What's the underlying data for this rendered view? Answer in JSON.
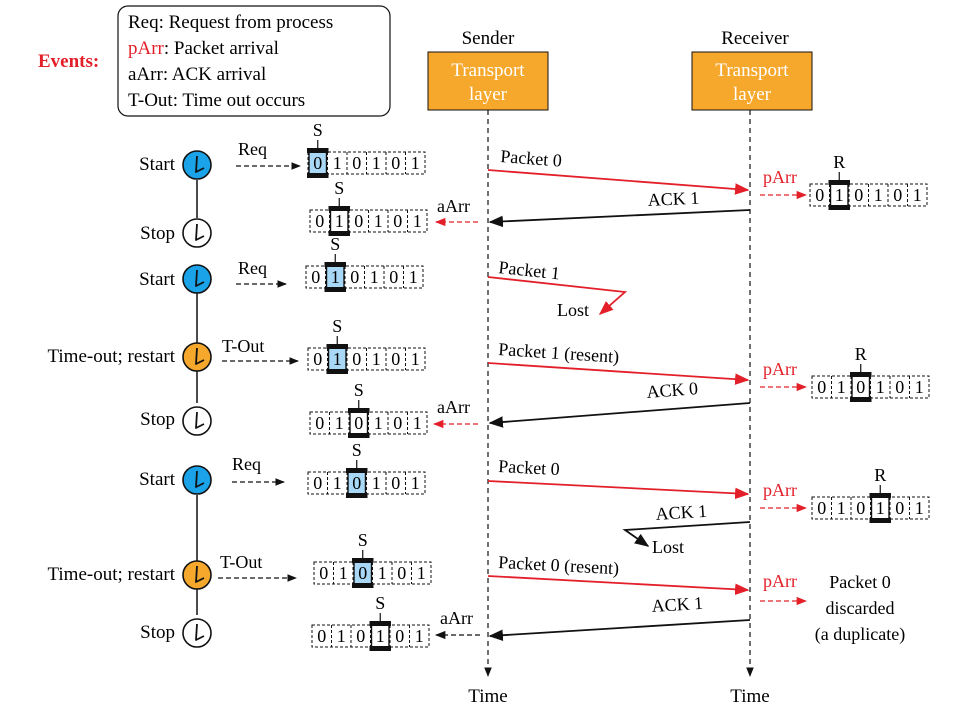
{
  "events": {
    "label": "Events:",
    "items": [
      {
        "key": "Req",
        "text": ": Request from process",
        "color": "#111111"
      },
      {
        "key": "pArr",
        "text": ": Packet arrival",
        "color": "#e3202a"
      },
      {
        "key": "aArr",
        "text": ": ACK arrival",
        "color": "#111111"
      },
      {
        "key": "T-Out",
        "text": ": Time out occurs",
        "color": "#111111"
      }
    ]
  },
  "sender": {
    "title": "Sender",
    "box_line1": "Transport",
    "box_line2": "layer",
    "time_label": "Time"
  },
  "receiver": {
    "title": "Receiver",
    "box_line1": "Transport",
    "box_line2": "layer",
    "time_label": "Time"
  },
  "colors": {
    "box_fill": "#f6a82d",
    "box_text": "#ffffff",
    "timer_start": "#1aa3e8",
    "timer_timeout": "#f6a82d",
    "packet_line": "#e3202a",
    "event_red": "#e3202a",
    "highlight_cell": "#a8d8f5"
  },
  "timer_labels": {
    "start": "Start",
    "stop": "Stop",
    "timeout": "Time-out; restart"
  },
  "event_names": {
    "req": "Req",
    "tout": "T-Out",
    "aarr": "aArr",
    "parr": "pArr"
  },
  "window_labels": {
    "sender": "S",
    "receiver": "R"
  },
  "sequence": [
    "0",
    "1",
    "0",
    "1",
    "0",
    "1"
  ],
  "messages": {
    "m1": "Packet 0",
    "m2": "ACK 1",
    "m3": "Packet 1",
    "m4": "Lost",
    "m5": "Packet 1 (resent)",
    "m6": "ACK 0",
    "m7": "Packet 0",
    "m8": "ACK 1",
    "m9": "Lost",
    "m10": "Packet 0 (resent)",
    "m11": "ACK 1"
  },
  "discard_note": [
    "Packet 0",
    "discarded",
    "(a duplicate)"
  ]
}
